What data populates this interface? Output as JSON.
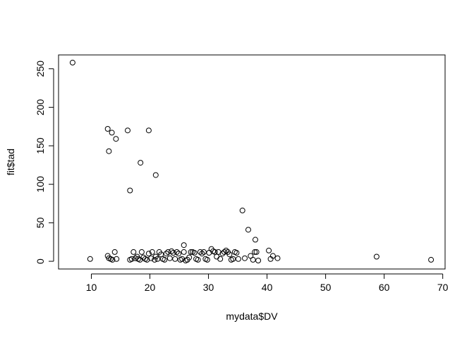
{
  "chart_data": {
    "type": "scatter",
    "title": "",
    "xlabel": "mydata$DV",
    "ylabel": "fit$tad",
    "xlim": [
      4.4,
      70.4
    ],
    "ylim": [
      -10,
      268
    ],
    "x_ticks": [
      10,
      20,
      30,
      40,
      50,
      60,
      70
    ],
    "y_ticks": [
      0,
      50,
      100,
      150,
      200,
      250
    ],
    "x_tick_labels": [
      "10",
      "20",
      "30",
      "40",
      "50",
      "60",
      "70"
    ],
    "y_tick_labels": [
      "0",
      "50",
      "100",
      "150",
      "200",
      "250"
    ],
    "grid": false,
    "marker": "open-circle",
    "series": [
      {
        "points": [
          [
            6.8,
            258
          ],
          [
            9.8,
            3
          ],
          [
            12.8,
            172
          ],
          [
            13.0,
            143
          ],
          [
            13.5,
            167
          ],
          [
            14.2,
            159
          ],
          [
            16.2,
            170
          ],
          [
            16.6,
            92
          ],
          [
            18.4,
            128
          ],
          [
            19.8,
            170
          ],
          [
            21.0,
            112
          ],
          [
            12.8,
            7
          ],
          [
            13.0,
            4
          ],
          [
            13.3,
            3
          ],
          [
            13.6,
            2
          ],
          [
            14.0,
            12
          ],
          [
            14.3,
            3
          ],
          [
            16.6,
            2
          ],
          [
            16.9,
            3
          ],
          [
            17.2,
            12
          ],
          [
            17.5,
            4
          ],
          [
            17.8,
            6
          ],
          [
            18.0,
            3
          ],
          [
            18.3,
            2
          ],
          [
            18.6,
            12
          ],
          [
            18.9,
            5
          ],
          [
            19.2,
            3
          ],
          [
            19.5,
            2
          ],
          [
            19.8,
            10
          ],
          [
            20.2,
            4
          ],
          [
            20.4,
            12
          ],
          [
            20.8,
            2
          ],
          [
            21.0,
            6
          ],
          [
            21.3,
            3
          ],
          [
            21.6,
            12
          ],
          [
            21.9,
            9
          ],
          [
            22.2,
            3
          ],
          [
            22.5,
            2
          ],
          [
            22.8,
            10
          ],
          [
            23.1,
            12
          ],
          [
            23.4,
            4
          ],
          [
            23.7,
            13
          ],
          [
            24.0,
            11
          ],
          [
            24.3,
            3
          ],
          [
            24.6,
            12
          ],
          [
            24.9,
            10
          ],
          [
            25.2,
            2
          ],
          [
            25.5,
            3
          ],
          [
            25.8,
            12
          ],
          [
            26.1,
            1
          ],
          [
            26.4,
            2
          ],
          [
            26.7,
            5
          ],
          [
            25.8,
            21
          ],
          [
            27.0,
            12
          ],
          [
            27.3,
            12
          ],
          [
            27.6,
            11
          ],
          [
            27.9,
            3
          ],
          [
            28.2,
            2
          ],
          [
            28.6,
            12
          ],
          [
            28.9,
            10
          ],
          [
            29.2,
            12
          ],
          [
            29.5,
            3
          ],
          [
            29.8,
            2
          ],
          [
            30.1,
            11
          ],
          [
            30.5,
            16
          ],
          [
            30.8,
            13
          ],
          [
            31.1,
            12
          ],
          [
            31.4,
            6
          ],
          [
            31.7,
            12
          ],
          [
            32.0,
            3
          ],
          [
            32.4,
            10
          ],
          [
            32.7,
            12
          ],
          [
            33.0,
            14
          ],
          [
            33.3,
            12
          ],
          [
            33.6,
            9
          ],
          [
            33.9,
            2
          ],
          [
            34.2,
            3
          ],
          [
            34.5,
            12
          ],
          [
            34.8,
            11
          ],
          [
            35.1,
            3
          ],
          [
            35.8,
            66
          ],
          [
            36.2,
            4
          ],
          [
            36.8,
            41
          ],
          [
            37.2,
            7
          ],
          [
            37.6,
            2
          ],
          [
            37.9,
            12
          ],
          [
            38.2,
            12
          ],
          [
            38.0,
            28
          ],
          [
            38.5,
            1
          ],
          [
            40.3,
            14
          ],
          [
            40.6,
            3
          ],
          [
            41.0,
            7
          ],
          [
            41.8,
            4
          ],
          [
            58.7,
            6
          ],
          [
            68.0,
            2
          ]
        ]
      }
    ]
  }
}
